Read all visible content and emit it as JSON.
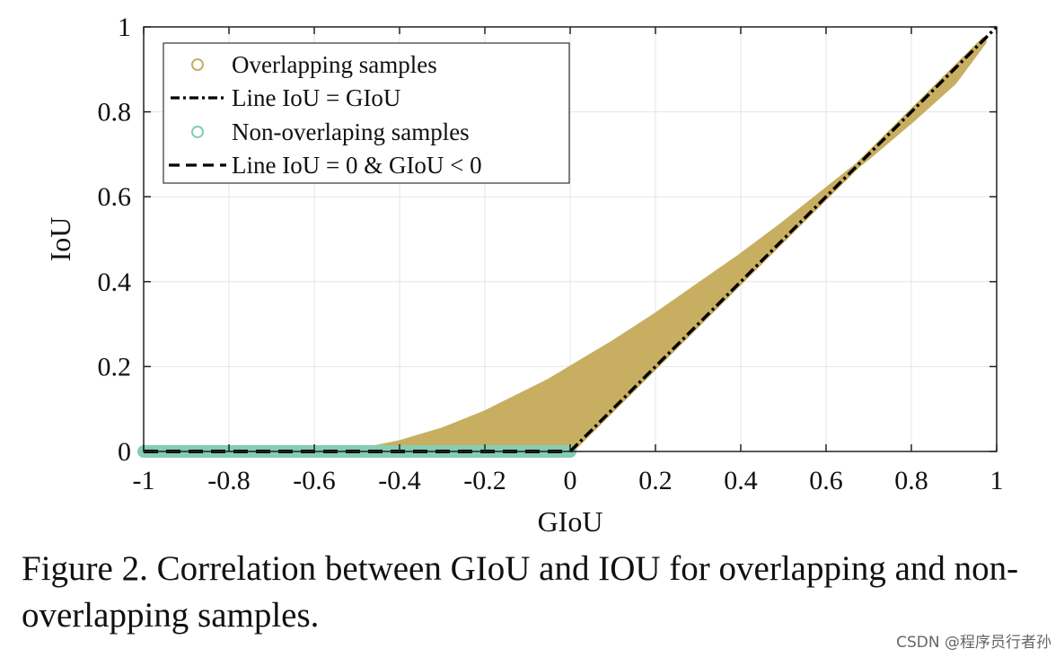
{
  "chart_data": {
    "type": "scatter",
    "title": "",
    "xlabel": "GIoU",
    "ylabel": "IoU",
    "xlim": [
      -1,
      1
    ],
    "ylim": [
      0,
      1
    ],
    "xticks": [
      -1,
      -0.8,
      -0.6,
      -0.4,
      -0.2,
      0,
      0.2,
      0.4,
      0.6,
      0.8,
      1
    ],
    "xtick_labels": [
      "-1",
      "-0.8",
      "-0.6",
      "-0.4",
      "-0.2",
      "0",
      "0.2",
      "0.4",
      "0.6",
      "0.8",
      "1"
    ],
    "yticks": [
      0,
      0.2,
      0.4,
      0.6,
      0.8,
      1
    ],
    "ytick_labels": [
      "0",
      "0.2",
      "0.4",
      "0.6",
      "0.8",
      "1"
    ],
    "grid": true,
    "legend_position": "top-left",
    "series": [
      {
        "name": "Overlapping samples",
        "kind": "scatter-band",
        "color": "#c8ae60",
        "upper": {
          "x": [
            -0.5,
            -0.45,
            -0.4,
            -0.35,
            -0.3,
            -0.25,
            -0.2,
            -0.15,
            -0.1,
            -0.05,
            0,
            0.1,
            0.2,
            0.3,
            0.4,
            0.5,
            0.6,
            0.7,
            0.8,
            0.9,
            0.97
          ],
          "y": [
            0,
            0.01,
            0.02,
            0.035,
            0.05,
            0.07,
            0.09,
            0.115,
            0.14,
            0.165,
            0.195,
            0.255,
            0.32,
            0.39,
            0.46,
            0.535,
            0.615,
            0.695,
            0.78,
            0.87,
            0.965
          ]
        },
        "lower": {
          "x": [
            -0.5,
            0,
            0.1,
            0.2,
            0.3,
            0.4,
            0.5,
            0.6,
            0.7,
            0.8,
            0.9,
            0.97
          ],
          "y": [
            0,
            0,
            0.1,
            0.2,
            0.3,
            0.4,
            0.5,
            0.6,
            0.7,
            0.8,
            0.9,
            0.97
          ]
        }
      },
      {
        "name": "Line IoU = GIoU",
        "kind": "line",
        "style": "dash-dot",
        "color": "#000000",
        "x": [
          0,
          1
        ],
        "y": [
          0,
          1
        ]
      },
      {
        "name": "Non-overlaping samples",
        "kind": "scatter-line",
        "color": "#84cdb2",
        "x": [
          -1,
          0
        ],
        "y": [
          0,
          0
        ]
      },
      {
        "name": "Line IoU = 0 & GIoU < 0",
        "kind": "line",
        "style": "dashed",
        "color": "#000000",
        "x": [
          -1,
          0
        ],
        "y": [
          0,
          0
        ]
      }
    ]
  },
  "caption": "Figure 2. Correlation between GIoU and IOU for overlapping and non-overlapping samples.",
  "watermark": "CSDN @程序员行者孙"
}
